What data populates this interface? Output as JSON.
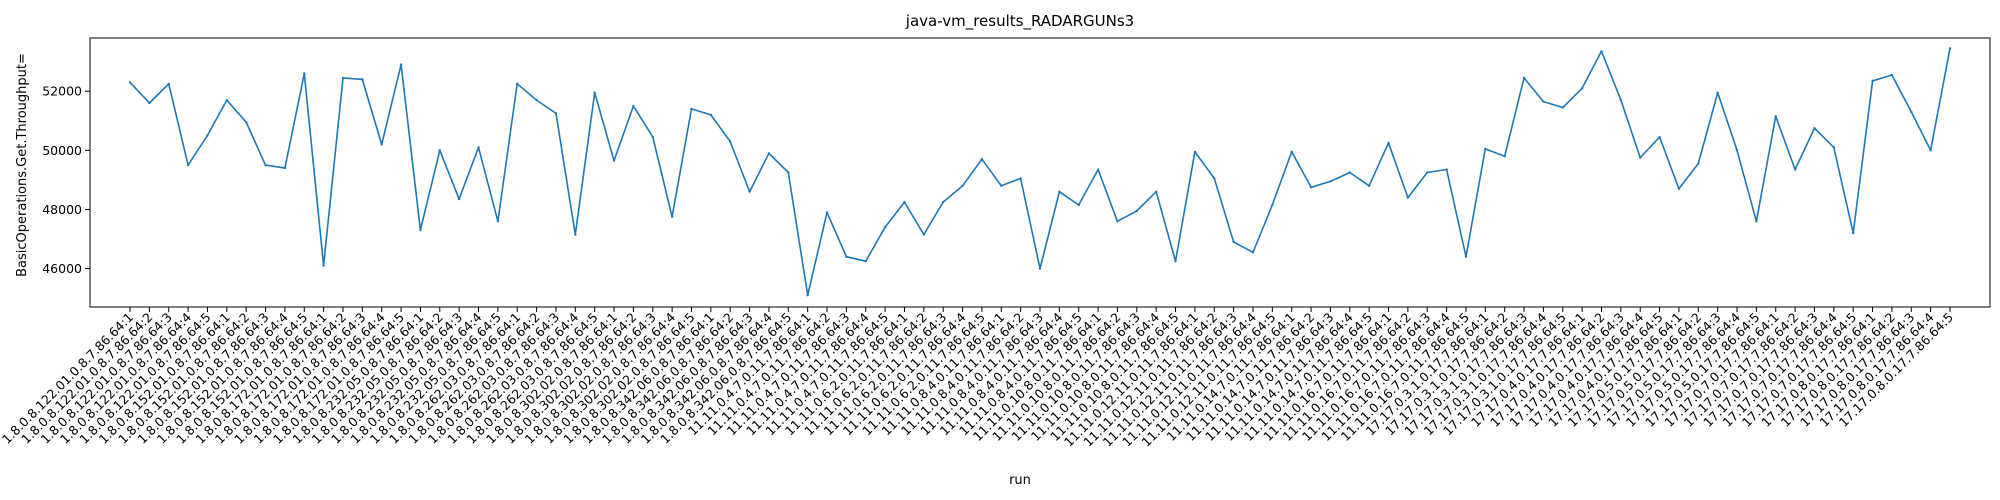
{
  "chart_data": {
    "type": "line",
    "title": "java-vm_results_RADARGUNs3",
    "xlabel": "run",
    "ylabel": "BasicOperations.Get.Throughput=",
    "ylim": [
      44700,
      53800
    ],
    "yticks": [
      46000,
      48000,
      50000,
      52000
    ],
    "grid": false,
    "line_color": "#1f77b4",
    "categories": [
      "1.8.0.8.122.01.0.8.7.86.64:1",
      "1.8.0.8.122.01.0.8.7.86.64:2",
      "1.8.0.8.122.01.0.8.7.86.64:3",
      "1.8.0.8.122.01.0.8.7.86.64:4",
      "1.8.0.8.122.01.0.8.7.86.64:5",
      "1.8.0.8.152.01.0.8.7.86.64:1",
      "1.8.0.8.152.01.0.8.7.86.64:2",
      "1.8.0.8.152.01.0.8.7.86.64:3",
      "1.8.0.8.152.01.0.8.7.86.64:4",
      "1.8.0.8.152.01.0.8.7.86.64:5",
      "1.8.0.8.172.01.0.8.7.86.64:1",
      "1.8.0.8.172.01.0.8.7.86.64:2",
      "1.8.0.8.172.01.0.8.7.86.64:3",
      "1.8.0.8.172.01.0.8.7.86.64:4",
      "1.8.0.8.172.01.0.8.7.86.64:5",
      "1.8.0.8.232.05.0.8.7.86.64:1",
      "1.8.0.8.232.05.0.8.7.86.64:2",
      "1.8.0.8.232.05.0.8.7.86.64:3",
      "1.8.0.8.232.05.0.8.7.86.64:4",
      "1.8.0.8.232.05.0.8.7.86.64:5",
      "1.8.0.8.262.03.0.8.7.86.64:1",
      "1.8.0.8.262.03.0.8.7.86.64:2",
      "1.8.0.8.262.03.0.8.7.86.64:3",
      "1.8.0.8.262.03.0.8.7.86.64:4",
      "1.8.0.8.262.03.0.8.7.86.64:5",
      "1.8.0.8.302.02.0.8.7.86.64:1",
      "1.8.0.8.302.02.0.8.7.86.64:2",
      "1.8.0.8.302.02.0.8.7.86.64:3",
      "1.8.0.8.302.02.0.8.7.86.64:4",
      "1.8.0.8.302.02.0.8.7.86.64:5",
      "1.8.0.8.342.06.0.8.7.86.64:1",
      "1.8.0.8.342.06.0.8.7.86.64:2",
      "1.8.0.8.342.06.0.8.7.86.64:3",
      "1.8.0.8.342.06.0.8.7.86.64:4",
      "1.8.0.8.342.06.0.8.7.86.64:5",
      "11.11.0.4.7.0.11.7.86.64:1",
      "11.11.0.4.7.0.11.7.86.64:2",
      "11.11.0.4.7.0.11.7.86.64:3",
      "11.11.0.4.7.0.11.7.86.64:4",
      "11.11.0.4.7.0.11.7.86.64:5",
      "11.11.0.6.2.0.11.7.86.64:1",
      "11.11.0.6.2.0.11.7.86.64:2",
      "11.11.0.6.2.0.11.7.86.64:3",
      "11.11.0.6.2.0.11.7.86.64:4",
      "11.11.0.6.2.0.11.7.86.64:5",
      "11.11.0.8.4.0.11.7.86.64:1",
      "11.11.0.8.4.0.11.7.86.64:2",
      "11.11.0.8.4.0.11.7.86.64:3",
      "11.11.0.8.4.0.11.7.86.64:4",
      "11.11.0.8.4.0.11.7.86.64:5",
      "11.11.0.10.8.0.11.7.86.64:1",
      "11.11.0.10.8.0.11.7.86.64:2",
      "11.11.0.10.8.0.11.7.86.64:3",
      "11.11.0.10.8.0.11.7.86.64:4",
      "11.11.0.10.8.0.11.7.86.64:5",
      "11.11.0.12.11.0.11.7.86.64:1",
      "11.11.0.12.11.0.11.7.86.64:2",
      "11.11.0.12.11.0.11.7.86.64:3",
      "11.11.0.12.11.0.11.7.86.64:4",
      "11.11.0.12.11.0.11.7.86.64:5",
      "11.11.0.14.7.0.11.7.86.64:1",
      "11.11.0.14.7.0.11.7.86.64:2",
      "11.11.0.14.7.0.11.7.86.64:3",
      "11.11.0.14.7.0.11.7.86.64:4",
      "11.11.0.14.7.0.11.7.86.64:5",
      "11.11.0.16.7.0.11.7.86.64:1",
      "11.11.0.16.7.0.11.7.86.64:2",
      "11.11.0.16.7.0.11.7.86.64:3",
      "11.11.0.16.7.0.11.7.86.64:4",
      "11.11.0.16.7.0.11.7.86.64:5",
      "17.17.0.3.1.0.17.7.86.64:1",
      "17.17.0.3.1.0.17.7.86.64:2",
      "17.17.0.3.1.0.17.7.86.64:3",
      "17.17.0.3.1.0.17.7.86.64:4",
      "17.17.0.3.1.0.17.7.86.64:5",
      "17.17.0.4.0.17.7.86.64:1",
      "17.17.0.4.0.17.7.86.64:2",
      "17.17.0.4.0.17.7.86.64:3",
      "17.17.0.4.0.17.7.86.64:4",
      "17.17.0.4.0.17.7.86.64:5",
      "17.17.0.5.0.17.7.86.64:1",
      "17.17.0.5.0.17.7.86.64:2",
      "17.17.0.5.0.17.7.86.64:3",
      "17.17.0.5.0.17.7.86.64:4",
      "17.17.0.5.0.17.7.86.64:5",
      "17.17.0.7.0.17.7.86.64:1",
      "17.17.0.7.0.17.7.86.64:2",
      "17.17.0.7.0.17.7.86.64:3",
      "17.17.0.7.0.17.7.86.64:4",
      "17.17.0.7.0.17.7.86.64:5",
      "17.17.0.8.0.17.7.86.64:1",
      "17.17.0.8.0.17.7.86.64:2",
      "17.17.0.8.0.17.7.86.64:3",
      "17.17.0.8.0.17.7.86.64:4",
      "17.17.0.8.0.17.7.86.64:5"
    ],
    "values": [
      52300,
      51600,
      52250,
      49500,
      50500,
      51700,
      50950,
      49500,
      49400,
      52600,
      46100,
      52450,
      52400,
      50200,
      52900,
      47300,
      50000,
      48350,
      50100,
      47600,
      52250,
      51700,
      51250,
      47150,
      51950,
      49650,
      51500,
      50450,
      47750,
      51400,
      51200,
      50300,
      48600,
      49900,
      49250,
      45100,
      47900,
      46400,
      46250,
      47400,
      48250,
      47150,
      48250,
      48800,
      49700,
      48800,
      49050,
      46000,
      48600,
      48150,
      49350,
      47600,
      47950,
      48600,
      46250,
      49950,
      49050,
      46900,
      46550,
      48150,
      49950,
      48750,
      48950,
      49250,
      48800,
      50250,
      48400,
      49250,
      49350,
      46400,
      50050,
      49800,
      52450,
      51650,
      51450,
      52100,
      53350,
      51700,
      49750,
      50450,
      48700,
      49550,
      51950,
      50000,
      47600,
      51150,
      49350,
      50750,
      50100,
      47200,
      52350,
      52550,
      51300,
      50000,
      53450
    ]
  }
}
